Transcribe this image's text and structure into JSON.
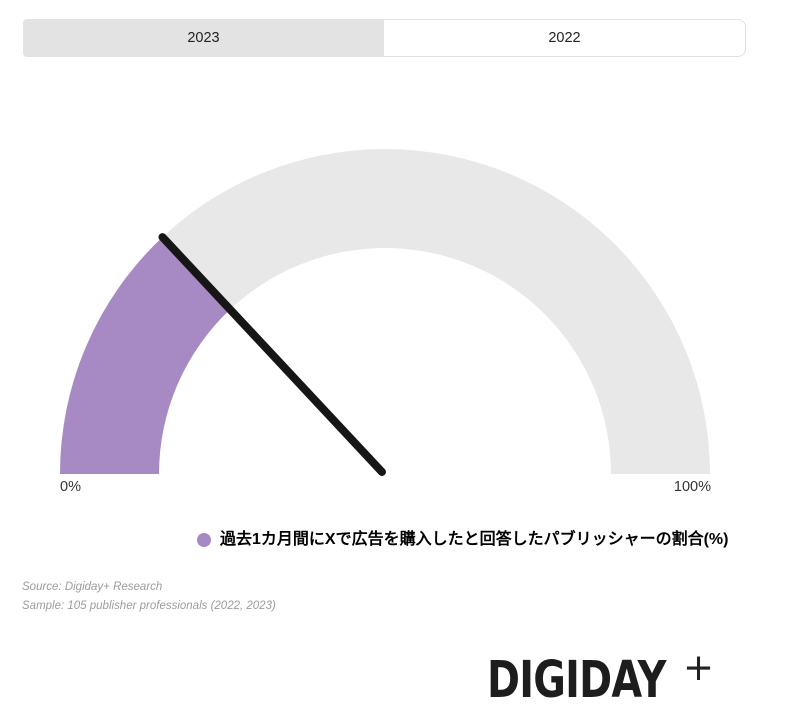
{
  "tabs": [
    {
      "label": "2023",
      "active": true
    },
    {
      "label": "2022",
      "active": false
    }
  ],
  "chart_data": {
    "type": "gauge",
    "title": "",
    "value": 26,
    "min": 0,
    "max": 100,
    "unit": "%",
    "axis_labels": {
      "min": "0%",
      "max": "100%"
    },
    "legend": [
      {
        "label": "過去1カ月間にXで広告を購入したと回答したパブリッシャーの割合(%)",
        "color": "#a78ac4"
      }
    ],
    "colors": {
      "fill": "#a78ac4",
      "track": "#e8e8e8",
      "needle": "#161616"
    },
    "legend_position": "bottom-center"
  },
  "footer": {
    "source": "Source: Digiday+ Research",
    "sample": "Sample: 105 publisher professionals (2022, 2023)"
  },
  "logo": {
    "text": "DIGIDAY",
    "plus": "+"
  }
}
